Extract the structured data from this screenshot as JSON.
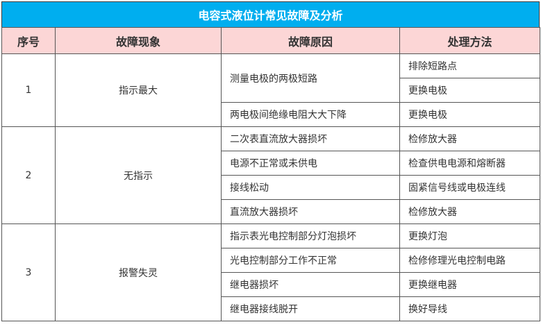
{
  "title": "电容式液位计常见故障及分析",
  "colors": {
    "title_bg": "#00aeef",
    "header_bg": "#fcd6d6"
  },
  "headers": [
    "序号",
    "故障现象",
    "故障原因",
    "处理方法"
  ],
  "groups": [
    {
      "no": "1",
      "symptom": "指示最大",
      "causes": [
        {
          "cause": "测量电极的两极短路",
          "actions": [
            "排除短路点",
            "更换电极"
          ]
        },
        {
          "cause": "两电极间绝缘电阻大大下降",
          "actions": [
            "更换电极"
          ]
        }
      ]
    },
    {
      "no": "2",
      "symptom": "无指示",
      "causes": [
        {
          "cause": "二次表直流放大器损坏",
          "actions": [
            "检修放大器"
          ]
        },
        {
          "cause": "电源不正常或未供电",
          "actions": [
            "检查供电电源和熔断器"
          ]
        },
        {
          "cause": "接线松动",
          "actions": [
            "固紧信号线或电极连线"
          ]
        },
        {
          "cause": "直流放大器损坏",
          "actions": [
            "检修放大器"
          ]
        }
      ]
    },
    {
      "no": "3",
      "symptom": "报警失灵",
      "causes": [
        {
          "cause": "指示表光电控制部分灯泡损坏",
          "actions": [
            "更换灯泡"
          ]
        },
        {
          "cause": "光电控制部分工作不正常",
          "actions": [
            "检修修理光电控制电路"
          ]
        },
        {
          "cause": "继电器损坏",
          "actions": [
            "更换继电器"
          ]
        },
        {
          "cause": "继电器接线脱开",
          "actions": [
            "换好导线"
          ]
        }
      ]
    }
  ]
}
